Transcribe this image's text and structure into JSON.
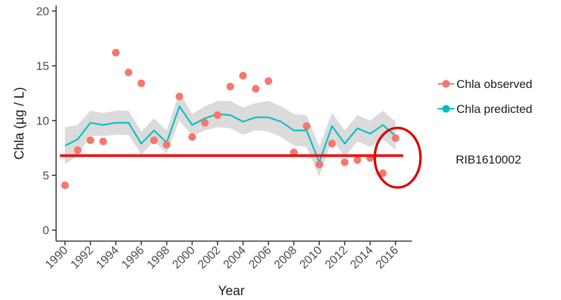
{
  "chart_data": {
    "type": "line",
    "xlabel": "Year",
    "ylabel": "Chla (µg / L)",
    "xlim": [
      1989.3,
      2017.3
    ],
    "ylim": [
      -1,
      20.5
    ],
    "x_ticks": [
      1990,
      1992,
      1994,
      1996,
      1998,
      2000,
      2002,
      2004,
      2006,
      2008,
      2010,
      2012,
      2014,
      2016
    ],
    "x_tick_labels": [
      "1990",
      "1992",
      "1994",
      "1996",
      "1998",
      "2000",
      "2002",
      "2004",
      "2006",
      "2008",
      "2010",
      "2012",
      "2014",
      "2016"
    ],
    "y_ticks": [
      0,
      5,
      10,
      15,
      20
    ],
    "y_tick_labels": [
      "0",
      "5",
      "10",
      "15",
      "20"
    ],
    "grid": false,
    "legend_position": "right",
    "series": [
      {
        "name": "Chla observed",
        "type": "scatter",
        "color": "#f8766d",
        "points": [
          {
            "x": 1990,
            "y": 4.1
          },
          {
            "x": 1991,
            "y": 7.3
          },
          {
            "x": 1992,
            "y": 8.2
          },
          {
            "x": 1993,
            "y": 8.1
          },
          {
            "x": 1994,
            "y": 16.2
          },
          {
            "x": 1995,
            "y": 14.4
          },
          {
            "x": 1996,
            "y": 13.4
          },
          {
            "x": 1997,
            "y": 8.2
          },
          {
            "x": 1998,
            "y": 7.8
          },
          {
            "x": 1999,
            "y": 12.2
          },
          {
            "x": 2000,
            "y": 8.5
          },
          {
            "x": 2001,
            "y": 9.8
          },
          {
            "x": 2002,
            "y": 10.5
          },
          {
            "x": 2003,
            "y": 13.1
          },
          {
            "x": 2004,
            "y": 14.1
          },
          {
            "x": 2005,
            "y": 12.9
          },
          {
            "x": 2006,
            "y": 13.6
          },
          {
            "x": 2008,
            "y": 7.1
          },
          {
            "x": 2009,
            "y": 9.5
          },
          {
            "x": 2010,
            "y": 6.0
          },
          {
            "x": 2011,
            "y": 7.9
          },
          {
            "x": 2012,
            "y": 6.2
          },
          {
            "x": 2013,
            "y": 6.4
          },
          {
            "x": 2014,
            "y": 6.6
          },
          {
            "x": 2015,
            "y": 5.2
          },
          {
            "x": 2016,
            "y": 8.4
          }
        ]
      },
      {
        "name": "Chla predicted",
        "type": "line",
        "color": "#00bfc4",
        "band_color": "#bdbdbd",
        "points": [
          {
            "x": 1990,
            "y": 7.7,
            "lo": 6.0,
            "hi": 9.4
          },
          {
            "x": 1991,
            "y": 8.3,
            "lo": 6.8,
            "hi": 9.6
          },
          {
            "x": 1992,
            "y": 9.8,
            "lo": 8.6,
            "hi": 10.9
          },
          {
            "x": 1993,
            "y": 9.6,
            "lo": 8.6,
            "hi": 10.7
          },
          {
            "x": 1994,
            "y": 9.8,
            "lo": 8.7,
            "hi": 10.9
          },
          {
            "x": 1995,
            "y": 9.8,
            "lo": 8.7,
            "hi": 10.9
          },
          {
            "x": 1996,
            "y": 7.9,
            "lo": 6.9,
            "hi": 9.0
          },
          {
            "x": 1997,
            "y": 9.1,
            "lo": 8.1,
            "hi": 10.2
          },
          {
            "x": 1998,
            "y": 8.0,
            "lo": 7.0,
            "hi": 9.1
          },
          {
            "x": 1999,
            "y": 11.3,
            "lo": 10.0,
            "hi": 12.6
          },
          {
            "x": 2000,
            "y": 9.6,
            "lo": 8.6,
            "hi": 10.6
          },
          {
            "x": 2001,
            "y": 10.2,
            "lo": 9.1,
            "hi": 11.3
          },
          {
            "x": 2002,
            "y": 10.6,
            "lo": 9.4,
            "hi": 11.8
          },
          {
            "x": 2003,
            "y": 10.5,
            "lo": 9.3,
            "hi": 11.8
          },
          {
            "x": 2004,
            "y": 9.9,
            "lo": 8.7,
            "hi": 11.2
          },
          {
            "x": 2005,
            "y": 10.3,
            "lo": 9.1,
            "hi": 11.6
          },
          {
            "x": 2006,
            "y": 10.3,
            "lo": 9.0,
            "hi": 11.8
          },
          {
            "x": 2007,
            "y": 9.9,
            "lo": 8.5,
            "hi": 11.3
          },
          {
            "x": 2008,
            "y": 9.1,
            "lo": 7.7,
            "hi": 10.6
          },
          {
            "x": 2009,
            "y": 9.1,
            "lo": 7.6,
            "hi": 10.5
          },
          {
            "x": 2010,
            "y": 6.2,
            "lo": 4.9,
            "hi": 7.6
          },
          {
            "x": 2011,
            "y": 9.5,
            "lo": 8.3,
            "hi": 10.7
          },
          {
            "x": 2012,
            "y": 7.9,
            "lo": 6.7,
            "hi": 9.1
          },
          {
            "x": 2013,
            "y": 9.3,
            "lo": 8.1,
            "hi": 10.5
          },
          {
            "x": 2014,
            "y": 8.8,
            "lo": 7.6,
            "hi": 10.0
          },
          {
            "x": 2015,
            "y": 9.6,
            "lo": 8.3,
            "hi": 10.9
          },
          {
            "x": 2016,
            "y": 8.6,
            "lo": 7.3,
            "hi": 9.9
          }
        ]
      }
    ],
    "annotations": {
      "station_label": "RIB1610002",
      "reference_line": {
        "y": 6.8,
        "x_from": 1989.6,
        "x_to": 2016.6,
        "color": "#ee1111"
      },
      "highlight_circle": {
        "x": 2016,
        "y": 6.8,
        "color": "#e00000"
      }
    }
  }
}
